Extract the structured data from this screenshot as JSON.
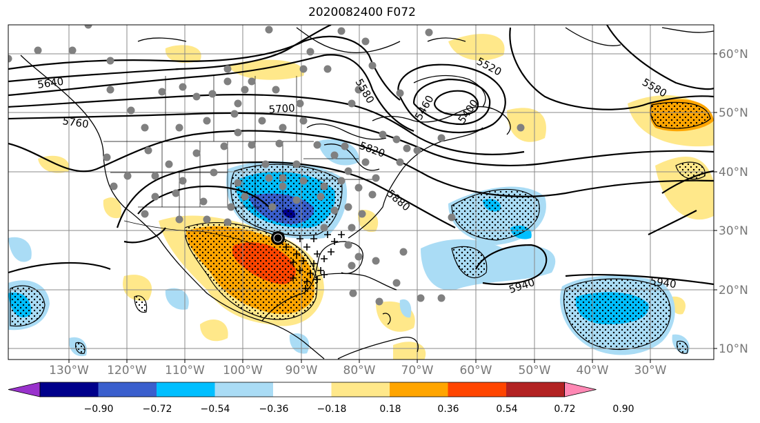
{
  "title": "2020082400 F072",
  "map": {
    "projection": "cylindrical",
    "lon_range": [
      -139,
      -15
    ],
    "lat_range": [
      7.5,
      65
    ],
    "lat_labels": [
      "60°N",
      "50°N",
      "40°N",
      "30°N",
      "20°N",
      "10°N"
    ],
    "lon_labels": [
      "130°W",
      "120°W",
      "110°W",
      "100°W",
      "90°W",
      "80°W",
      "70°W",
      "60°W",
      "50°W",
      "40°W",
      "30°W"
    ],
    "contour_labels": [
      "5520",
      "5580",
      "5640",
      "5760",
      "5940",
      "5940",
      "5580",
      "5400",
      "5460",
      "5880",
      "5820",
      "5700"
    ],
    "grid": true,
    "gridline_color": "#888888"
  },
  "colorbar": {
    "ticks": [
      "−0.90",
      "−0.72",
      "−0.54",
      "−0.36",
      "−0.18",
      "0.18",
      "0.36",
      "0.54",
      "0.72",
      "0.90"
    ],
    "colors": [
      "#9932cc",
      "#00008b",
      "#3a5fcd",
      "#00bfff",
      "#aadcf5",
      "#ffffff",
      "#ffe88a",
      "#ffa500",
      "#ff4500",
      "#b22222",
      "#ff88b4"
    ],
    "extend": "both"
  }
}
